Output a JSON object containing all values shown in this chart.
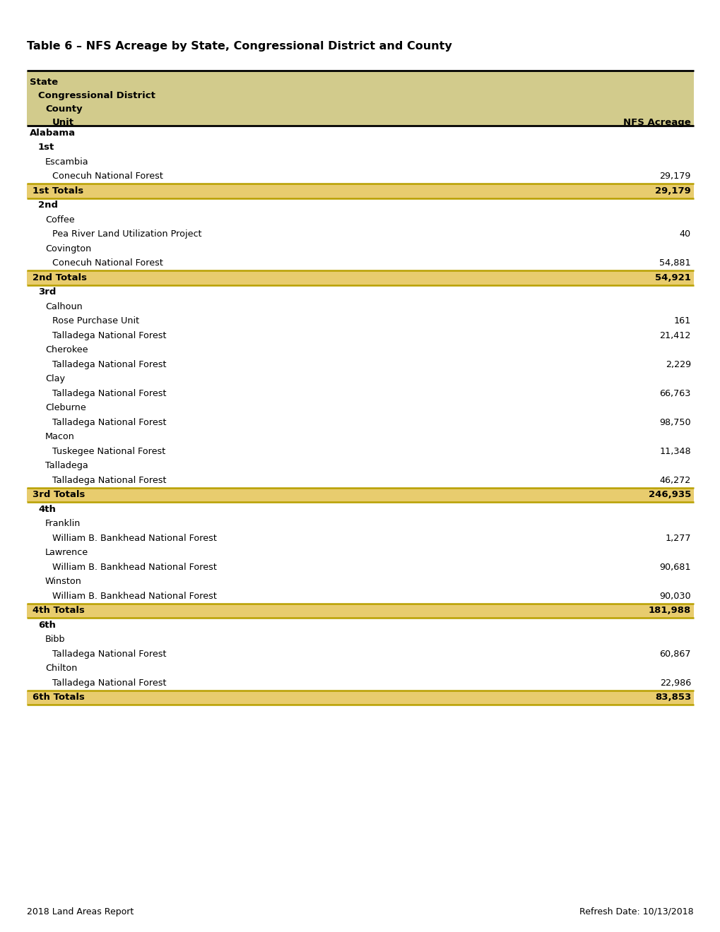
{
  "title": "Table 6 – NFS Acreage by State, Congressional District and County",
  "footer_left": "2018 Land Areas Report",
  "footer_right": "Refresh Date: 10/13/2018",
  "header_bg": "#d2cb8c",
  "totals_bg": "#e8cc6e",
  "totals_border_top": "#b8a000",
  "totals_border_bot": "#b8a000",
  "page_bg": "#ffffff",
  "rows": [
    {
      "type": "state",
      "label": "Alabama",
      "value": null
    },
    {
      "type": "district",
      "label": "1st",
      "value": null
    },
    {
      "type": "county",
      "label": "Escambia",
      "value": null
    },
    {
      "type": "unit",
      "label": "Conecuh National Forest",
      "value": "29,179"
    },
    {
      "type": "total",
      "label": "1st Totals",
      "value": "29,179"
    },
    {
      "type": "district",
      "label": "2nd",
      "value": null
    },
    {
      "type": "county",
      "label": "Coffee",
      "value": null
    },
    {
      "type": "unit",
      "label": "Pea River Land Utilization Project",
      "value": "40"
    },
    {
      "type": "county",
      "label": "Covington",
      "value": null
    },
    {
      "type": "unit",
      "label": "Conecuh National Forest",
      "value": "54,881"
    },
    {
      "type": "total",
      "label": "2nd Totals",
      "value": "54,921"
    },
    {
      "type": "district",
      "label": "3rd",
      "value": null
    },
    {
      "type": "county",
      "label": "Calhoun",
      "value": null
    },
    {
      "type": "unit",
      "label": "Rose Purchase Unit",
      "value": "161"
    },
    {
      "type": "unit",
      "label": "Talladega National Forest",
      "value": "21,412"
    },
    {
      "type": "county",
      "label": "Cherokee",
      "value": null
    },
    {
      "type": "unit",
      "label": "Talladega National Forest",
      "value": "2,229"
    },
    {
      "type": "county",
      "label": "Clay",
      "value": null
    },
    {
      "type": "unit",
      "label": "Talladega National Forest",
      "value": "66,763"
    },
    {
      "type": "county",
      "label": "Cleburne",
      "value": null
    },
    {
      "type": "unit",
      "label": "Talladega National Forest",
      "value": "98,750"
    },
    {
      "type": "county",
      "label": "Macon",
      "value": null
    },
    {
      "type": "unit",
      "label": "Tuskegee National Forest",
      "value": "11,348"
    },
    {
      "type": "county",
      "label": "Talladega",
      "value": null
    },
    {
      "type": "unit",
      "label": "Talladega National Forest",
      "value": "46,272"
    },
    {
      "type": "total",
      "label": "3rd Totals",
      "value": "246,935"
    },
    {
      "type": "district",
      "label": "4th",
      "value": null
    },
    {
      "type": "county",
      "label": "Franklin",
      "value": null
    },
    {
      "type": "unit",
      "label": "William B. Bankhead National Forest",
      "value": "1,277"
    },
    {
      "type": "county",
      "label": "Lawrence",
      "value": null
    },
    {
      "type": "unit",
      "label": "William B. Bankhead National Forest",
      "value": "90,681"
    },
    {
      "type": "county",
      "label": "Winston",
      "value": null
    },
    {
      "type": "unit",
      "label": "William B. Bankhead National Forest",
      "value": "90,030"
    },
    {
      "type": "total",
      "label": "4th Totals",
      "value": "181,988"
    },
    {
      "type": "district",
      "label": "6th",
      "value": null
    },
    {
      "type": "county",
      "label": "Bibb",
      "value": null
    },
    {
      "type": "unit",
      "label": "Talladega National Forest",
      "value": "60,867"
    },
    {
      "type": "county",
      "label": "Chilton",
      "value": null
    },
    {
      "type": "unit",
      "label": "Talladega National Forest",
      "value": "22,986"
    },
    {
      "type": "total",
      "label": "6th Totals",
      "value": "83,853"
    }
  ]
}
